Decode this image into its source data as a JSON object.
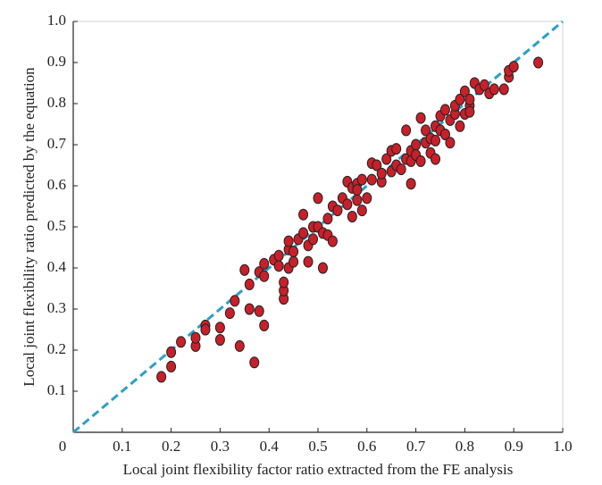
{
  "chart_data": {
    "type": "scatter",
    "x_label": "Local joint flexibility factor ratio extracted from the FE analysis",
    "y_label": "Local joint flexibility ratio predicted by the equation",
    "color": "#c8202a",
    "reference_line_color": "#2aa0c8",
    "xlim": [
      0,
      1
    ],
    "ylim": [
      0,
      1
    ],
    "xticks": [
      0,
      0.1,
      0.2,
      0.3,
      0.4,
      0.5,
      0.6,
      0.7,
      0.8,
      0.9,
      {
        "value": 1,
        "label": "1.0"
      }
    ],
    "yticks": [
      0.1,
      0.2,
      0.3,
      0.4,
      0.5,
      0.6,
      0.7,
      0.8,
      0.9,
      {
        "value": 1,
        "label": "1.0"
      }
    ],
    "x": [
      0.18,
      0.2,
      0.2,
      0.22,
      0.25,
      0.25,
      0.27,
      0.27,
      0.3,
      0.3,
      0.32,
      0.33,
      0.34,
      0.35,
      0.36,
      0.36,
      0.37,
      0.38,
      0.38,
      0.39,
      0.39,
      0.39,
      0.41,
      0.42,
      0.42,
      0.43,
      0.43,
      0.43,
      0.44,
      0.44,
      0.44,
      0.45,
      0.45,
      0.46,
      0.47,
      0.47,
      0.48,
      0.48,
      0.49,
      0.49,
      0.5,
      0.5,
      0.51,
      0.51,
      0.52,
      0.52,
      0.53,
      0.53,
      0.54,
      0.55,
      0.56,
      0.56,
      0.57,
      0.57,
      0.58,
      0.58,
      0.58,
      0.59,
      0.59,
      0.6,
      0.61,
      0.61,
      0.62,
      0.63,
      0.63,
      0.64,
      0.65,
      0.65,
      0.66,
      0.66,
      0.67,
      0.68,
      0.68,
      0.69,
      0.69,
      0.69,
      0.7,
      0.7,
      0.71,
      0.71,
      0.72,
      0.72,
      0.73,
      0.73,
      0.74,
      0.74,
      0.74,
      0.75,
      0.75,
      0.76,
      0.76,
      0.77,
      0.77,
      0.78,
      0.78,
      0.79,
      0.79,
      0.8,
      0.8,
      0.81,
      0.81,
      0.81,
      0.82,
      0.83,
      0.84,
      0.85,
      0.86,
      0.88,
      0.89,
      0.89,
      0.9,
      0.95
    ],
    "y": [
      0.135,
      0.16,
      0.195,
      0.22,
      0.21,
      0.23,
      0.26,
      0.25,
      0.255,
      0.225,
      0.29,
      0.32,
      0.21,
      0.395,
      0.3,
      0.36,
      0.17,
      0.295,
      0.39,
      0.38,
      0.26,
      0.41,
      0.42,
      0.405,
      0.43,
      0.325,
      0.345,
      0.365,
      0.445,
      0.465,
      0.4,
      0.415,
      0.44,
      0.47,
      0.53,
      0.485,
      0.455,
      0.415,
      0.5,
      0.47,
      0.57,
      0.5,
      0.485,
      0.4,
      0.52,
      0.48,
      0.55,
      0.465,
      0.54,
      0.57,
      0.61,
      0.555,
      0.595,
      0.525,
      0.565,
      0.605,
      0.59,
      0.54,
      0.615,
      0.57,
      0.615,
      0.655,
      0.65,
      0.61,
      0.63,
      0.665,
      0.635,
      0.685,
      0.65,
      0.69,
      0.64,
      0.665,
      0.735,
      0.685,
      0.605,
      0.66,
      0.7,
      0.675,
      0.765,
      0.66,
      0.705,
      0.735,
      0.68,
      0.715,
      0.665,
      0.745,
      0.71,
      0.77,
      0.735,
      0.785,
      0.725,
      0.76,
      0.705,
      0.775,
      0.795,
      0.745,
      0.81,
      0.775,
      0.83,
      0.795,
      0.78,
      0.81,
      0.85,
      0.835,
      0.845,
      0.825,
      0.835,
      0.835,
      0.865,
      0.88,
      0.89,
      0.9
    ]
  }
}
